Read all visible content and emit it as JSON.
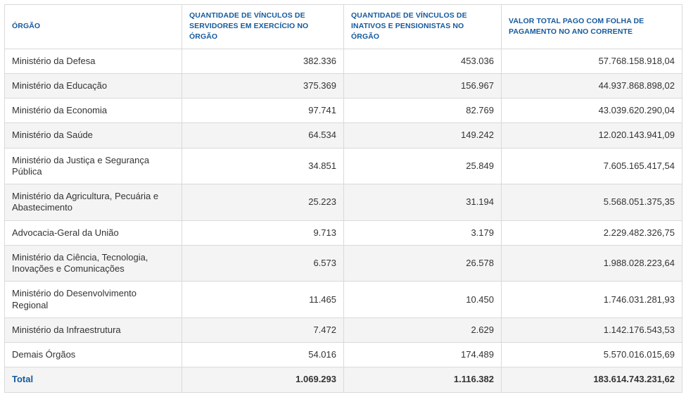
{
  "colors": {
    "header_text": "#155a9c",
    "total_label_text": "#155a9c",
    "row_alt_bg": "#f4f4f4",
    "border": "#d9d9d9",
    "body_text": "#333333"
  },
  "chart_data": {
    "type": "table",
    "columns": [
      "ÓRGÃO",
      "QUANTIDADE DE VÍNCULOS DE SERVIDORES EM EXERCÍCIO NO ÓRGÃO",
      "QUANTIDADE DE VÍNCULOS DE INATIVOS E PENSIONISTAS NO ÓRGÃO",
      "VALOR TOTAL PAGO COM FOLHA DE PAGAMENTO NO ANO CORRENTE"
    ],
    "rows": [
      [
        "Ministério da Defesa",
        "382.336",
        "453.036",
        "57.768.158.918,04"
      ],
      [
        "Ministério da Educação",
        "375.369",
        "156.967",
        "44.937.868.898,02"
      ],
      [
        "Ministério da Economia",
        "97.741",
        "82.769",
        "43.039.620.290,04"
      ],
      [
        "Ministério da Saúde",
        "64.534",
        "149.242",
        "12.020.143.941,09"
      ],
      [
        "Ministério da Justiça e Segurança Pública",
        "34.851",
        "25.849",
        "7.605.165.417,54"
      ],
      [
        "Ministério da Agricultura, Pecuária e Abastecimento",
        "25.223",
        "31.194",
        "5.568.051.375,35"
      ],
      [
        "Advocacia-Geral da União",
        "9.713",
        "3.179",
        "2.229.482.326,75"
      ],
      [
        "Ministério da Ciência, Tecnologia, Inovações e Comunicações",
        "6.573",
        "26.578",
        "1.988.028.223,64"
      ],
      [
        "Ministério do Desenvolvimento Regional",
        "11.465",
        "10.450",
        "1.746.031.281,93"
      ],
      [
        "Ministério da Infraestrutura",
        "7.472",
        "2.629",
        "1.142.176.543,53"
      ],
      [
        "Demais Órgãos",
        "54.016",
        "174.489",
        "5.570.016.015,69"
      ]
    ],
    "total_row": [
      "Total",
      "1.069.293",
      "1.116.382",
      "183.614.743.231,62"
    ]
  }
}
